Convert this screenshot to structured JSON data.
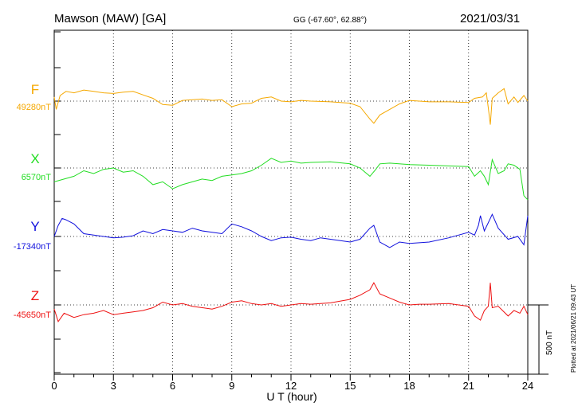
{
  "header": {
    "station": "Mawson (MAW)  [GA]",
    "coords": "GG (-67.60°,  62.88°)",
    "date": "2021/03/31"
  },
  "plotted_note": "Plotted at 2021/06/21 09:43 UT",
  "chart_data": {
    "type": "line",
    "xlabel": "U T (hour)",
    "xlim": [
      0,
      24
    ],
    "xticks": [
      0,
      3,
      6,
      9,
      12,
      15,
      18,
      21,
      24
    ],
    "scale_bar": {
      "label": "500 nT",
      "value": 500
    },
    "series": [
      {
        "name": "F",
        "baseline_label": "49280nT",
        "baseline": 49280,
        "color": "#f5a800",
        "points": [
          [
            0,
            30
          ],
          [
            0.1,
            -60
          ],
          [
            0.3,
            40
          ],
          [
            0.6,
            70
          ],
          [
            1,
            60
          ],
          [
            1.5,
            80
          ],
          [
            2,
            70
          ],
          [
            2.5,
            60
          ],
          [
            3,
            55
          ],
          [
            3.5,
            65
          ],
          [
            4,
            70
          ],
          [
            4.5,
            45
          ],
          [
            5,
            20
          ],
          [
            5.5,
            -25
          ],
          [
            6,
            -30
          ],
          [
            6.5,
            5
          ],
          [
            7,
            10
          ],
          [
            7.5,
            15
          ],
          [
            8,
            5
          ],
          [
            8.5,
            10
          ],
          [
            9,
            -40
          ],
          [
            9.5,
            -20
          ],
          [
            10,
            -15
          ],
          [
            10.5,
            20
          ],
          [
            11,
            30
          ],
          [
            11.5,
            0
          ],
          [
            12,
            -5
          ],
          [
            12.5,
            5
          ],
          [
            13,
            0
          ],
          [
            14,
            -5
          ],
          [
            15,
            -15
          ],
          [
            15.5,
            -40
          ],
          [
            16,
            -130
          ],
          [
            16.2,
            -160
          ],
          [
            16.5,
            -100
          ],
          [
            17,
            -60
          ],
          [
            17.5,
            -20
          ],
          [
            18,
            5
          ],
          [
            18.5,
            0
          ],
          [
            19,
            -5
          ],
          [
            20,
            -5
          ],
          [
            21,
            -10
          ],
          [
            21.3,
            20
          ],
          [
            21.7,
            30
          ],
          [
            21.9,
            60
          ],
          [
            22,
            -50
          ],
          [
            22.1,
            -170
          ],
          [
            22.2,
            20
          ],
          [
            22.5,
            60
          ],
          [
            22.8,
            90
          ],
          [
            23,
            -20
          ],
          [
            23.3,
            30
          ],
          [
            23.5,
            -10
          ],
          [
            23.8,
            40
          ],
          [
            24,
            0
          ]
        ]
      },
      {
        "name": "X",
        "baseline_label": "6570nT",
        "baseline": 6570,
        "color": "#22dd22",
        "points": [
          [
            0,
            -100
          ],
          [
            0.5,
            -80
          ],
          [
            1,
            -60
          ],
          [
            1.5,
            -20
          ],
          [
            2,
            -40
          ],
          [
            2.5,
            -10
          ],
          [
            3,
            0
          ],
          [
            3.5,
            -30
          ],
          [
            4,
            -20
          ],
          [
            4.5,
            -60
          ],
          [
            5,
            -120
          ],
          [
            5.5,
            -100
          ],
          [
            6,
            -150
          ],
          [
            6.5,
            -120
          ],
          [
            7,
            -100
          ],
          [
            7.5,
            -80
          ],
          [
            8,
            -90
          ],
          [
            8.5,
            -60
          ],
          [
            9,
            -50
          ],
          [
            9.5,
            -40
          ],
          [
            10,
            -20
          ],
          [
            10.5,
            20
          ],
          [
            11,
            70
          ],
          [
            11.5,
            40
          ],
          [
            12,
            50
          ],
          [
            12.5,
            35
          ],
          [
            13,
            40
          ],
          [
            14,
            45
          ],
          [
            15,
            30
          ],
          [
            15.5,
            0
          ],
          [
            16,
            -60
          ],
          [
            16.3,
            -10
          ],
          [
            16.5,
            30
          ],
          [
            17,
            35
          ],
          [
            18,
            25
          ],
          [
            19,
            20
          ],
          [
            20,
            15
          ],
          [
            21,
            10
          ],
          [
            21.3,
            -60
          ],
          [
            21.6,
            -20
          ],
          [
            21.8,
            -60
          ],
          [
            22,
            -120
          ],
          [
            22.2,
            60
          ],
          [
            22.5,
            -40
          ],
          [
            22.8,
            -20
          ],
          [
            23,
            30
          ],
          [
            23.3,
            20
          ],
          [
            23.6,
            -10
          ],
          [
            23.8,
            -200
          ],
          [
            24,
            -230
          ]
        ]
      },
      {
        "name": "Y",
        "baseline_label": "-17340nT",
        "baseline": -17340,
        "color": "#1010dd",
        "points": [
          [
            0,
            0
          ],
          [
            0.2,
            80
          ],
          [
            0.4,
            130
          ],
          [
            0.6,
            120
          ],
          [
            1,
            90
          ],
          [
            1.5,
            20
          ],
          [
            2,
            10
          ],
          [
            2.5,
            0
          ],
          [
            3,
            -10
          ],
          [
            3.5,
            -5
          ],
          [
            4,
            5
          ],
          [
            4.5,
            40
          ],
          [
            5,
            20
          ],
          [
            5.5,
            50
          ],
          [
            6,
            40
          ],
          [
            6.5,
            30
          ],
          [
            7,
            60
          ],
          [
            7.5,
            40
          ],
          [
            8,
            30
          ],
          [
            8.5,
            20
          ],
          [
            9,
            90
          ],
          [
            9.5,
            70
          ],
          [
            10,
            40
          ],
          [
            10.5,
            0
          ],
          [
            11,
            -30
          ],
          [
            11.5,
            -10
          ],
          [
            12,
            -5
          ],
          [
            12.5,
            -20
          ],
          [
            13,
            -30
          ],
          [
            13.5,
            -10
          ],
          [
            14,
            -20
          ],
          [
            15,
            -40
          ],
          [
            15.5,
            -20
          ],
          [
            16,
            60
          ],
          [
            16.2,
            80
          ],
          [
            16.5,
            -40
          ],
          [
            17,
            -80
          ],
          [
            17.5,
            -40
          ],
          [
            18,
            -50
          ],
          [
            19,
            -40
          ],
          [
            20,
            -10
          ],
          [
            21,
            30
          ],
          [
            21.3,
            10
          ],
          [
            21.5,
            80
          ],
          [
            21.6,
            150
          ],
          [
            21.8,
            40
          ],
          [
            22,
            100
          ],
          [
            22.2,
            160
          ],
          [
            22.5,
            60
          ],
          [
            23,
            -20
          ],
          [
            23.5,
            0
          ],
          [
            23.8,
            -60
          ],
          [
            24,
            150
          ]
        ]
      },
      {
        "name": "Z",
        "baseline_label": "-45650nT",
        "baseline": -45650,
        "color": "#ee1111",
        "points": [
          [
            0,
            -30
          ],
          [
            0.2,
            -120
          ],
          [
            0.5,
            -60
          ],
          [
            1,
            -90
          ],
          [
            1.5,
            -70
          ],
          [
            2,
            -60
          ],
          [
            2.5,
            -40
          ],
          [
            3,
            -70
          ],
          [
            3.5,
            -60
          ],
          [
            4,
            -50
          ],
          [
            4.5,
            -40
          ],
          [
            5,
            -20
          ],
          [
            5.5,
            20
          ],
          [
            6,
            0
          ],
          [
            6.5,
            10
          ],
          [
            7,
            -10
          ],
          [
            7.5,
            -20
          ],
          [
            8,
            -30
          ],
          [
            8.5,
            -10
          ],
          [
            9,
            20
          ],
          [
            9.5,
            30
          ],
          [
            10,
            10
          ],
          [
            10.5,
            0
          ],
          [
            11,
            10
          ],
          [
            11.5,
            -10
          ],
          [
            12,
            0
          ],
          [
            12.5,
            10
          ],
          [
            13,
            5
          ],
          [
            14,
            15
          ],
          [
            15,
            40
          ],
          [
            15.5,
            70
          ],
          [
            16,
            110
          ],
          [
            16.2,
            160
          ],
          [
            16.5,
            80
          ],
          [
            17,
            50
          ],
          [
            17.5,
            20
          ],
          [
            18,
            0
          ],
          [
            18.5,
            5
          ],
          [
            19,
            5
          ],
          [
            20,
            10
          ],
          [
            21,
            -10
          ],
          [
            21.3,
            -80
          ],
          [
            21.6,
            -110
          ],
          [
            21.8,
            -40
          ],
          [
            22,
            -10
          ],
          [
            22.1,
            160
          ],
          [
            22.2,
            -20
          ],
          [
            22.5,
            -10
          ],
          [
            23,
            -80
          ],
          [
            23.3,
            -40
          ],
          [
            23.6,
            -60
          ],
          [
            23.8,
            -10
          ],
          [
            24,
            -70
          ]
        ]
      }
    ]
  }
}
